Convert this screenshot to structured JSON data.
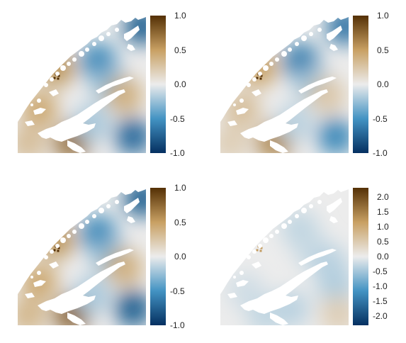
{
  "colors": {
    "scale_low": "#053061",
    "scale_mid_low": "#4393c3",
    "scale_center": "#ececec",
    "scale_mid_high": "#c8a063",
    "scale_high": "#543005",
    "background": "#ffffff"
  },
  "chart_data": [
    {
      "type": "heatmap",
      "title": "",
      "xlabel": "",
      "ylabel": "",
      "colorbar": {
        "min": -1.0,
        "max": 1.0,
        "ticks": [
          "1.0",
          "0.5",
          "0.0",
          "-0.5",
          "-1.0"
        ],
        "tick_values": [
          1.0,
          0.5,
          0.0,
          -0.5,
          -1.0
        ]
      },
      "blobs": [
        {
          "x": 0.97,
          "y": 0.08,
          "value": -0.75
        },
        {
          "x": 0.63,
          "y": 0.33,
          "value": -0.55
        },
        {
          "x": 0.72,
          "y": 0.5,
          "value": -0.3
        },
        {
          "x": 0.3,
          "y": 0.38,
          "value": 0.55
        },
        {
          "x": 0.83,
          "y": 0.58,
          "value": 0.4
        },
        {
          "x": 0.17,
          "y": 0.68,
          "value": 0.45
        },
        {
          "x": 0.42,
          "y": 0.92,
          "value": 0.7
        },
        {
          "x": 0.9,
          "y": 0.88,
          "value": -0.7
        },
        {
          "x": 0.58,
          "y": 0.78,
          "value": -0.2
        },
        {
          "x": 0.08,
          "y": 0.93,
          "value": 0.3
        }
      ],
      "hotspot": {
        "x": 0.29,
        "y": 0.42,
        "value": 1.0
      }
    },
    {
      "type": "heatmap",
      "title": "",
      "xlabel": "",
      "ylabel": "",
      "colorbar": {
        "min": -1.0,
        "max": 1.0,
        "ticks": [
          "1.0",
          "0.5",
          "0.0",
          "-0.5",
          "-1.0"
        ],
        "tick_values": [
          1.0,
          0.5,
          0.0,
          -0.5,
          -1.0
        ]
      },
      "blobs": [
        {
          "x": 0.97,
          "y": 0.08,
          "value": -0.65
        },
        {
          "x": 0.63,
          "y": 0.33,
          "value": -0.6
        },
        {
          "x": 0.72,
          "y": 0.5,
          "value": -0.25
        },
        {
          "x": 0.3,
          "y": 0.38,
          "value": 0.5
        },
        {
          "x": 0.83,
          "y": 0.58,
          "value": 0.25
        },
        {
          "x": 0.17,
          "y": 0.68,
          "value": 0.3
        },
        {
          "x": 0.42,
          "y": 0.92,
          "value": 0.6
        },
        {
          "x": 0.9,
          "y": 0.88,
          "value": -0.55
        },
        {
          "x": 0.58,
          "y": 0.78,
          "value": -0.15
        },
        {
          "x": 0.08,
          "y": 0.93,
          "value": 0.2
        }
      ],
      "hotspot": {
        "x": 0.29,
        "y": 0.42,
        "value": 1.0
      }
    },
    {
      "type": "heatmap",
      "title": "",
      "xlabel": "",
      "ylabel": "",
      "colorbar": {
        "min": -1.0,
        "max": 1.0,
        "ticks": [
          "1.0",
          "0.5",
          "0.0",
          "-0.5",
          "-1.0"
        ],
        "tick_values": [
          1.0,
          0.5,
          0.0,
          -0.5,
          -1.0
        ]
      },
      "blobs": [
        {
          "x": 0.97,
          "y": 0.08,
          "value": -0.75
        },
        {
          "x": 0.63,
          "y": 0.33,
          "value": -0.55
        },
        {
          "x": 0.72,
          "y": 0.5,
          "value": -0.3
        },
        {
          "x": 0.3,
          "y": 0.38,
          "value": 0.55
        },
        {
          "x": 0.83,
          "y": 0.58,
          "value": 0.4
        },
        {
          "x": 0.17,
          "y": 0.68,
          "value": 0.45
        },
        {
          "x": 0.42,
          "y": 0.92,
          "value": 0.75
        },
        {
          "x": 0.9,
          "y": 0.88,
          "value": -0.75
        },
        {
          "x": 0.58,
          "y": 0.78,
          "value": -0.2
        },
        {
          "x": 0.08,
          "y": 0.93,
          "value": 0.35
        }
      ],
      "hotspot": {
        "x": 0.29,
        "y": 0.42,
        "value": 1.0
      }
    },
    {
      "type": "heatmap",
      "title": "",
      "xlabel": "",
      "ylabel": "",
      "colorbar": {
        "min": -2.3,
        "max": 2.3,
        "ticks": [
          "2.0",
          "1.5",
          "1.0",
          "0.5",
          "0.0",
          "-0.5",
          "-1.0",
          "-1.5",
          "-2.0"
        ],
        "tick_values": [
          2.0,
          1.5,
          1.0,
          0.5,
          0.0,
          -0.5,
          -1.0,
          -1.5,
          -2.0
        ]
      },
      "blobs": [
        {
          "x": 0.62,
          "y": 0.3,
          "value": -0.3
        },
        {
          "x": 0.72,
          "y": 0.46,
          "value": -0.25
        },
        {
          "x": 0.85,
          "y": 0.55,
          "value": -0.35
        },
        {
          "x": 0.9,
          "y": 0.72,
          "value": -0.4
        },
        {
          "x": 0.55,
          "y": 0.88,
          "value": -0.35
        },
        {
          "x": 0.35,
          "y": 0.92,
          "value": -0.3
        },
        {
          "x": 0.92,
          "y": 0.92,
          "value": 0.45
        },
        {
          "x": 0.2,
          "y": 0.75,
          "value": -0.2
        }
      ],
      "hotspot": {
        "x": 0.29,
        "y": 0.42,
        "value": 1.2
      }
    }
  ]
}
